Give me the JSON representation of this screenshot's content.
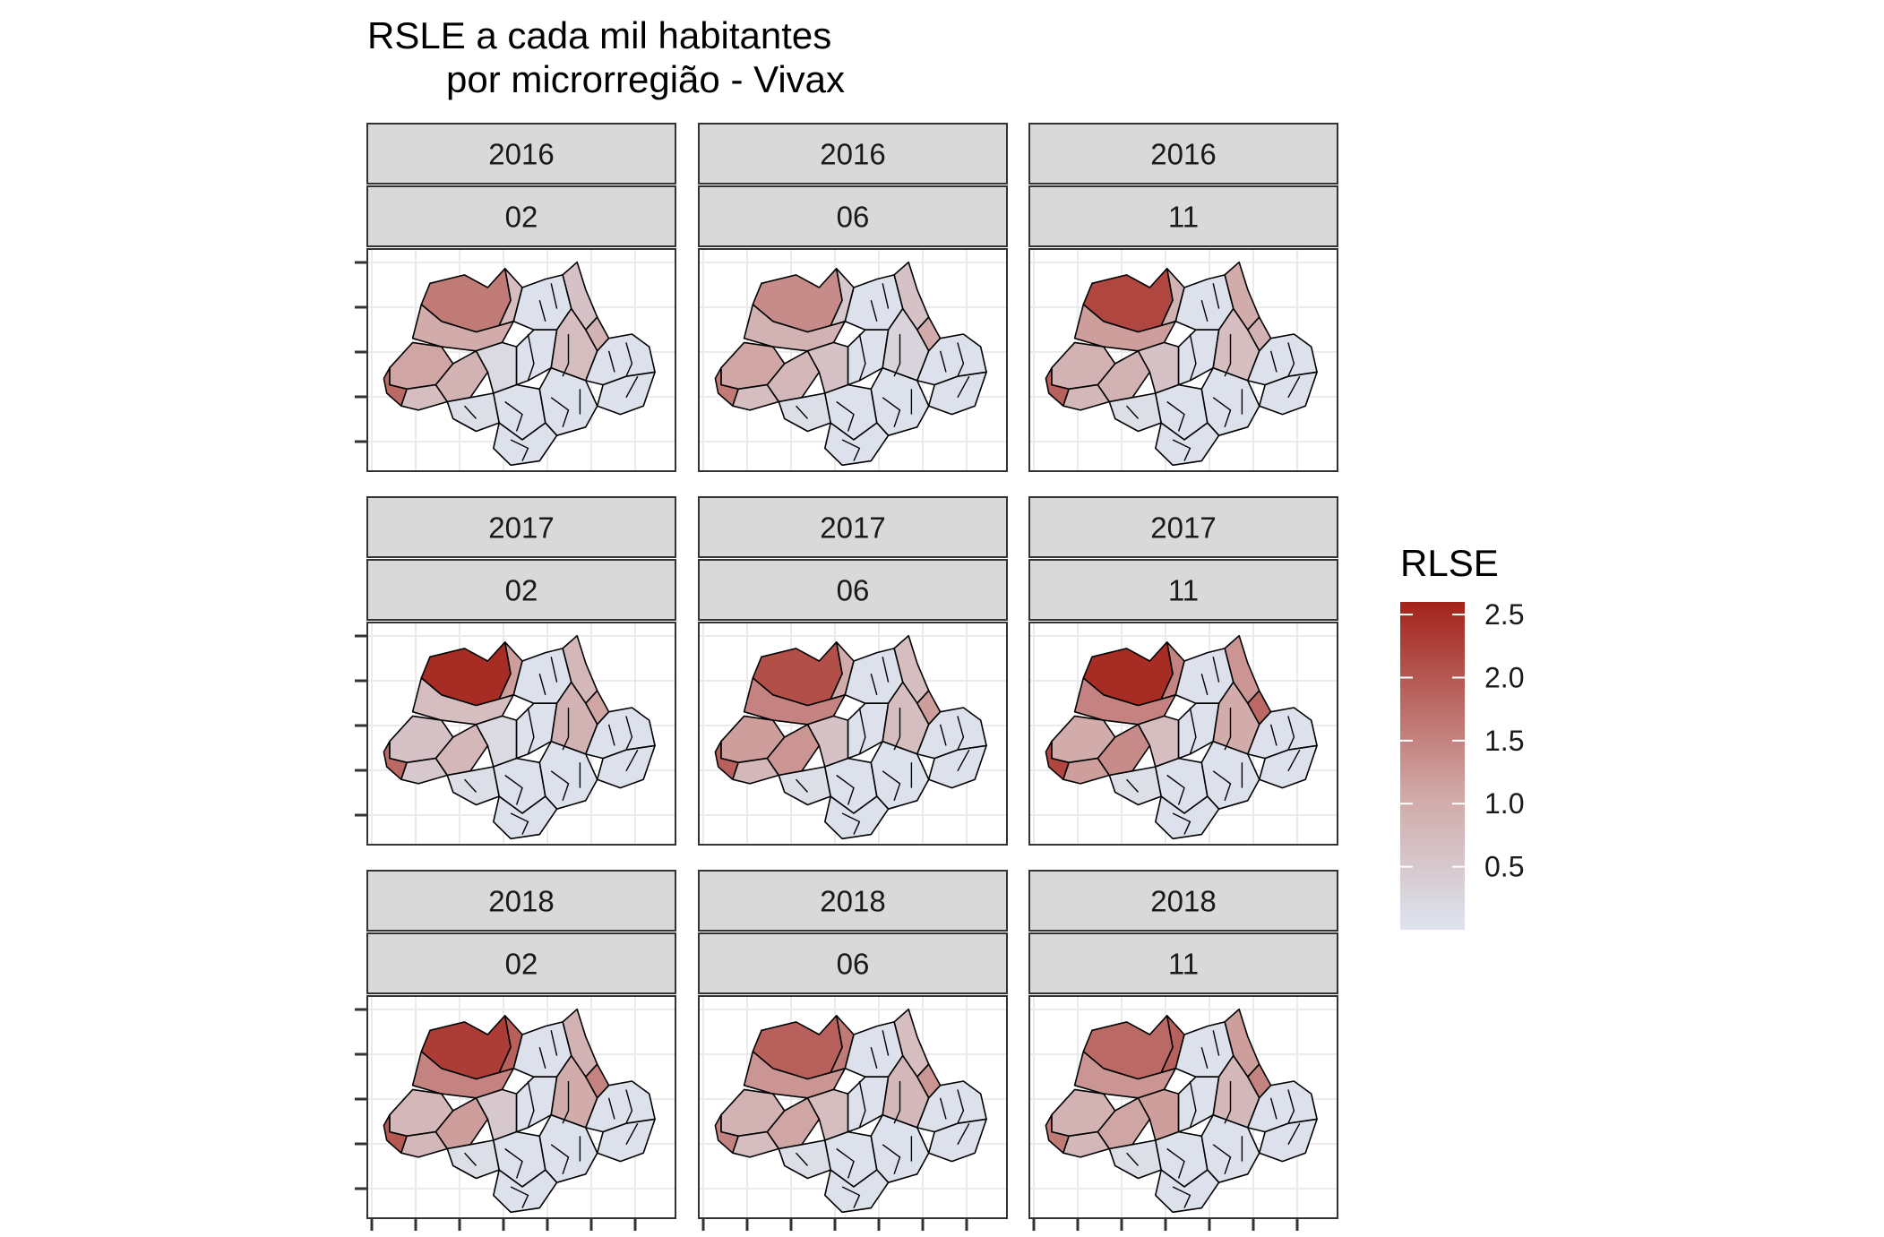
{
  "title": {
    "line1": "RSLE a cada mil habitantes",
    "line2": "por microrregião - Vivax"
  },
  "legend": {
    "title": "RLSE",
    "labels": [
      "2.5",
      "2.0",
      "1.5",
      "1.0",
      "0.5"
    ],
    "label_values": [
      2.5,
      2.0,
      1.5,
      1.0,
      0.5
    ],
    "range": [
      0.0,
      2.6
    ],
    "low_color": "#dde4ef",
    "mid_color": "#d0a7a5",
    "high_color": "#a3231b"
  },
  "colors": {
    "strip_fill": "#d9d9d9",
    "panel_border": "#333333",
    "grid": "#ebebeb",
    "region_border": "#000000"
  },
  "facets": [
    {
      "year": "2016",
      "month": "02"
    },
    {
      "year": "2016",
      "month": "06"
    },
    {
      "year": "2016",
      "month": "11"
    },
    {
      "year": "2017",
      "month": "02"
    },
    {
      "year": "2017",
      "month": "06"
    },
    {
      "year": "2017",
      "month": "11"
    },
    {
      "year": "2018",
      "month": "02"
    },
    {
      "year": "2018",
      "month": "06"
    },
    {
      "year": "2018",
      "month": "11"
    }
  ]
}
